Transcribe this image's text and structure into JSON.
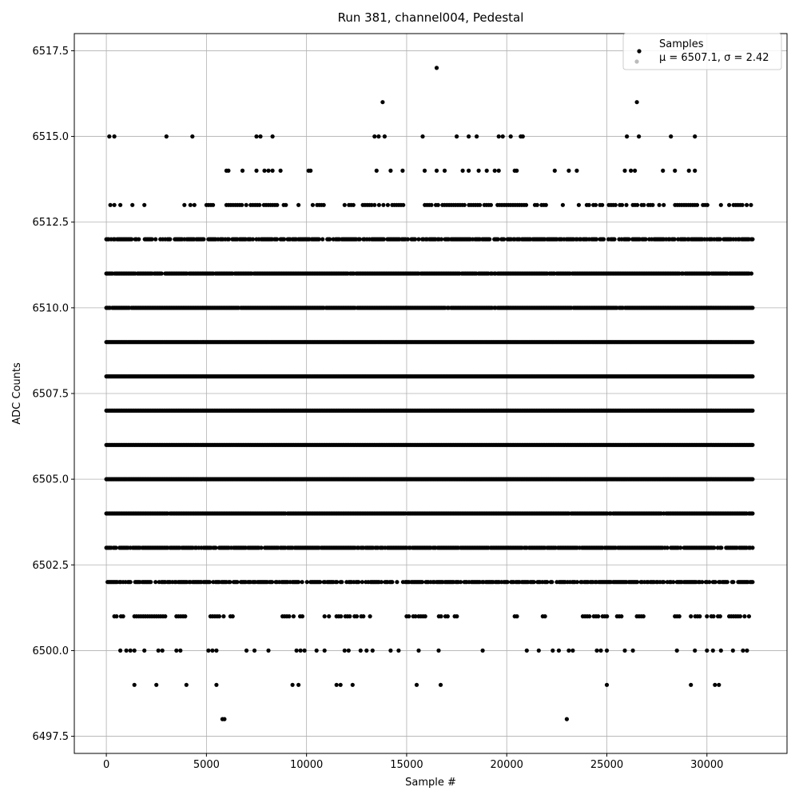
{
  "chart_data": {
    "type": "scatter",
    "title": "Run 381, channel004, Pedestal",
    "xlabel": "Sample #",
    "ylabel": "ADC Counts",
    "xlim": [
      -1600,
      34000
    ],
    "ylim": [
      6497.0,
      6518.0
    ],
    "x_ticks": [
      0,
      5000,
      10000,
      15000,
      20000,
      25000,
      30000
    ],
    "y_ticks": [
      6497.5,
      6500.0,
      6502.5,
      6505.0,
      6507.5,
      6510.0,
      6512.5,
      6515.0,
      6517.5
    ],
    "x_tick_labels": [
      "0",
      "5000",
      "10000",
      "15000",
      "20000",
      "25000",
      "30000"
    ],
    "y_tick_labels": [
      "6497.5",
      "6500.0",
      "6502.5",
      "6505.0",
      "6507.5",
      "6510.0",
      "6512.5",
      "6515.0",
      "6517.5"
    ],
    "grid": true,
    "legend": {
      "placement": "top-right",
      "entries": [
        {
          "label": "Samples",
          "color": "#000000"
        },
        {
          "label": "μ = 6507.1, σ = 2.42",
          "color": "#bbbbbb"
        }
      ]
    },
    "n_samples": 32300,
    "levels": [
      {
        "y": 6511,
        "density": 0.95
      },
      {
        "y": 6510,
        "density": 0.98
      },
      {
        "y": 6509,
        "density": 1.0
      },
      {
        "y": 6508,
        "density": 1.0
      },
      {
        "y": 6507,
        "density": 1.0
      },
      {
        "y": 6506,
        "density": 1.0
      },
      {
        "y": 6505,
        "density": 1.0
      },
      {
        "y": 6504,
        "density": 0.98
      },
      {
        "y": 6503,
        "density": 0.9
      },
      {
        "y": 6512,
        "density": 0.72
      },
      {
        "y": 6502,
        "density": 0.7
      }
    ],
    "x_spans": [
      {
        "y": 6513,
        "x": [
          [
            4400,
            4500
          ],
          [
            5000,
            5400
          ],
          [
            6000,
            9000
          ],
          [
            9600,
            9700
          ],
          [
            10200,
            11200
          ],
          [
            11900,
            12400
          ],
          [
            12700,
            13300
          ],
          [
            13400,
            15000
          ],
          [
            15800,
            19000
          ],
          [
            19100,
            21000
          ],
          [
            21300,
            22000
          ],
          [
            24000,
            26000
          ],
          [
            26300,
            28000
          ],
          [
            28300,
            29600
          ],
          [
            29800,
            30200
          ],
          [
            31000,
            32200
          ]
        ]
      },
      {
        "y": 6501,
        "x": [
          [
            400,
            1000
          ],
          [
            1400,
            3000
          ],
          [
            3500,
            4000
          ],
          [
            5200,
            6000
          ],
          [
            6200,
            6400
          ],
          [
            8800,
            9900
          ],
          [
            10900,
            11200
          ],
          [
            11500,
            12200
          ],
          [
            12400,
            13200
          ],
          [
            15000,
            15500
          ],
          [
            15600,
            16000
          ],
          [
            16500,
            17100
          ],
          [
            17400,
            17600
          ],
          [
            20400,
            20600
          ],
          [
            21800,
            22100
          ],
          [
            23800,
            25200
          ],
          [
            25400,
            25800
          ],
          [
            26500,
            27000
          ],
          [
            28400,
            28700
          ],
          [
            29200,
            29700
          ],
          [
            30000,
            30800
          ],
          [
            31000,
            32200
          ]
        ]
      }
    ],
    "points": [
      {
        "x": 5800,
        "y": 6498
      },
      {
        "x": 5900,
        "y": 6498
      },
      {
        "x": 23000,
        "y": 6498
      },
      {
        "x": 1400,
        "y": 6499
      },
      {
        "x": 2500,
        "y": 6499
      },
      {
        "x": 4000,
        "y": 6499
      },
      {
        "x": 5500,
        "y": 6499
      },
      {
        "x": 9300,
        "y": 6499
      },
      {
        "x": 9600,
        "y": 6499
      },
      {
        "x": 11500,
        "y": 6499
      },
      {
        "x": 11700,
        "y": 6499
      },
      {
        "x": 12300,
        "y": 6499
      },
      {
        "x": 15500,
        "y": 6499
      },
      {
        "x": 16700,
        "y": 6499
      },
      {
        "x": 25000,
        "y": 6499
      },
      {
        "x": 29200,
        "y": 6499
      },
      {
        "x": 30400,
        "y": 6499
      },
      {
        "x": 30600,
        "y": 6499
      },
      {
        "x": 700,
        "y": 6500
      },
      {
        "x": 1000,
        "y": 6500
      },
      {
        "x": 1200,
        "y": 6500
      },
      {
        "x": 1400,
        "y": 6500
      },
      {
        "x": 1900,
        "y": 6500
      },
      {
        "x": 2600,
        "y": 6500
      },
      {
        "x": 2800,
        "y": 6500
      },
      {
        "x": 3500,
        "y": 6500
      },
      {
        "x": 3700,
        "y": 6500
      },
      {
        "x": 5100,
        "y": 6500
      },
      {
        "x": 5300,
        "y": 6500
      },
      {
        "x": 5500,
        "y": 6500
      },
      {
        "x": 7000,
        "y": 6500
      },
      {
        "x": 7400,
        "y": 6500
      },
      {
        "x": 8100,
        "y": 6500
      },
      {
        "x": 9500,
        "y": 6500
      },
      {
        "x": 9700,
        "y": 6500
      },
      {
        "x": 9900,
        "y": 6500
      },
      {
        "x": 10500,
        "y": 6500
      },
      {
        "x": 10900,
        "y": 6500
      },
      {
        "x": 11900,
        "y": 6500
      },
      {
        "x": 12100,
        "y": 6500
      },
      {
        "x": 12700,
        "y": 6500
      },
      {
        "x": 13000,
        "y": 6500
      },
      {
        "x": 13300,
        "y": 6500
      },
      {
        "x": 14200,
        "y": 6500
      },
      {
        "x": 14600,
        "y": 6500
      },
      {
        "x": 15600,
        "y": 6500
      },
      {
        "x": 16600,
        "y": 6500
      },
      {
        "x": 18800,
        "y": 6500
      },
      {
        "x": 21000,
        "y": 6500
      },
      {
        "x": 21600,
        "y": 6500
      },
      {
        "x": 22300,
        "y": 6500
      },
      {
        "x": 22600,
        "y": 6500
      },
      {
        "x": 23100,
        "y": 6500
      },
      {
        "x": 23300,
        "y": 6500
      },
      {
        "x": 24500,
        "y": 6500
      },
      {
        "x": 24700,
        "y": 6500
      },
      {
        "x": 25000,
        "y": 6500
      },
      {
        "x": 25900,
        "y": 6500
      },
      {
        "x": 26300,
        "y": 6500
      },
      {
        "x": 28500,
        "y": 6500
      },
      {
        "x": 29400,
        "y": 6500
      },
      {
        "x": 30000,
        "y": 6500
      },
      {
        "x": 30300,
        "y": 6500
      },
      {
        "x": 30700,
        "y": 6500
      },
      {
        "x": 31300,
        "y": 6500
      },
      {
        "x": 31800,
        "y": 6500
      },
      {
        "x": 32000,
        "y": 6500
      },
      {
        "x": 200,
        "y": 6513
      },
      {
        "x": 400,
        "y": 6513
      },
      {
        "x": 700,
        "y": 6513
      },
      {
        "x": 1300,
        "y": 6513
      },
      {
        "x": 1900,
        "y": 6513
      },
      {
        "x": 3900,
        "y": 6513
      },
      {
        "x": 4200,
        "y": 6513
      },
      {
        "x": 22800,
        "y": 6513
      },
      {
        "x": 23600,
        "y": 6513
      },
      {
        "x": 30700,
        "y": 6513
      },
      {
        "x": 32200,
        "y": 6513
      },
      {
        "x": 6000,
        "y": 6514
      },
      {
        "x": 6100,
        "y": 6514
      },
      {
        "x": 6800,
        "y": 6514
      },
      {
        "x": 7500,
        "y": 6514
      },
      {
        "x": 7900,
        "y": 6514
      },
      {
        "x": 8100,
        "y": 6514
      },
      {
        "x": 8300,
        "y": 6514
      },
      {
        "x": 8700,
        "y": 6514
      },
      {
        "x": 10100,
        "y": 6514
      },
      {
        "x": 10200,
        "y": 6514
      },
      {
        "x": 13500,
        "y": 6514
      },
      {
        "x": 14200,
        "y": 6514
      },
      {
        "x": 14800,
        "y": 6514
      },
      {
        "x": 15900,
        "y": 6514
      },
      {
        "x": 16500,
        "y": 6514
      },
      {
        "x": 16900,
        "y": 6514
      },
      {
        "x": 17800,
        "y": 6514
      },
      {
        "x": 18100,
        "y": 6514
      },
      {
        "x": 18600,
        "y": 6514
      },
      {
        "x": 19000,
        "y": 6514
      },
      {
        "x": 19400,
        "y": 6514
      },
      {
        "x": 19600,
        "y": 6514
      },
      {
        "x": 20400,
        "y": 6514
      },
      {
        "x": 20500,
        "y": 6514
      },
      {
        "x": 22400,
        "y": 6514
      },
      {
        "x": 23100,
        "y": 6514
      },
      {
        "x": 23500,
        "y": 6514
      },
      {
        "x": 25900,
        "y": 6514
      },
      {
        "x": 26200,
        "y": 6514
      },
      {
        "x": 26400,
        "y": 6514
      },
      {
        "x": 27800,
        "y": 6514
      },
      {
        "x": 28400,
        "y": 6514
      },
      {
        "x": 29100,
        "y": 6514
      },
      {
        "x": 29400,
        "y": 6514
      },
      {
        "x": 150,
        "y": 6515
      },
      {
        "x": 400,
        "y": 6515
      },
      {
        "x": 3000,
        "y": 6515
      },
      {
        "x": 4300,
        "y": 6515
      },
      {
        "x": 7500,
        "y": 6515
      },
      {
        "x": 7700,
        "y": 6515
      },
      {
        "x": 8300,
        "y": 6515
      },
      {
        "x": 13400,
        "y": 6515
      },
      {
        "x": 13600,
        "y": 6515
      },
      {
        "x": 13900,
        "y": 6515
      },
      {
        "x": 15800,
        "y": 6515
      },
      {
        "x": 17500,
        "y": 6515
      },
      {
        "x": 18100,
        "y": 6515
      },
      {
        "x": 18500,
        "y": 6515
      },
      {
        "x": 19600,
        "y": 6515
      },
      {
        "x": 19800,
        "y": 6515
      },
      {
        "x": 20200,
        "y": 6515
      },
      {
        "x": 20700,
        "y": 6515
      },
      {
        "x": 20800,
        "y": 6515
      },
      {
        "x": 26000,
        "y": 6515
      },
      {
        "x": 26600,
        "y": 6515
      },
      {
        "x": 28200,
        "y": 6515
      },
      {
        "x": 29400,
        "y": 6515
      },
      {
        "x": 13800,
        "y": 6516
      },
      {
        "x": 26500,
        "y": 6516
      },
      {
        "x": 16500,
        "y": 6517
      }
    ]
  }
}
